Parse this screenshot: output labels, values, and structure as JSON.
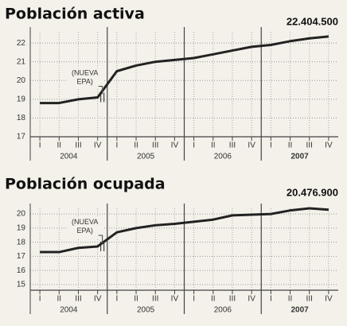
{
  "chart_data": [
    {
      "type": "line",
      "title": "Población activa",
      "annotation": "22.404.500",
      "note": "(NUEVA EPA)",
      "categories": [
        "I",
        "II",
        "III",
        "IV",
        "I",
        "II",
        "III",
        "IV",
        "I",
        "II",
        "III",
        "IV",
        "I",
        "II",
        "III",
        "IV"
      ],
      "years": [
        "2004",
        "2005",
        "2006",
        "2007"
      ],
      "values": [
        18.8,
        18.8,
        19.0,
        19.1,
        20.5,
        20.8,
        21.0,
        21.1,
        21.2,
        21.4,
        21.6,
        21.8,
        21.9,
        22.1,
        22.25,
        22.35
      ],
      "color": "#222222",
      "ylim": [
        17,
        22.6
      ],
      "yticks": [
        17,
        18,
        19,
        20,
        21,
        22
      ],
      "grid": true
    },
    {
      "type": "line",
      "title": "Población ocupada",
      "annotation": "20.476.900",
      "note": "(NUEVA EPA)",
      "categories": [
        "I",
        "II",
        "III",
        "IV",
        "I",
        "II",
        "III",
        "IV",
        "I",
        "II",
        "III",
        "IV",
        "I",
        "II",
        "III",
        "IV"
      ],
      "years": [
        "2004",
        "2005",
        "2006",
        "2007"
      ],
      "values": [
        17.3,
        17.3,
        17.6,
        17.7,
        18.7,
        19.0,
        19.2,
        19.3,
        19.45,
        19.6,
        19.9,
        19.95,
        20.0,
        20.25,
        20.4,
        20.3
      ],
      "color": "#222222",
      "ylim": [
        14.6,
        20.4
      ],
      "yticks": [
        15,
        16,
        17,
        18,
        19,
        20
      ],
      "grid": true
    }
  ]
}
